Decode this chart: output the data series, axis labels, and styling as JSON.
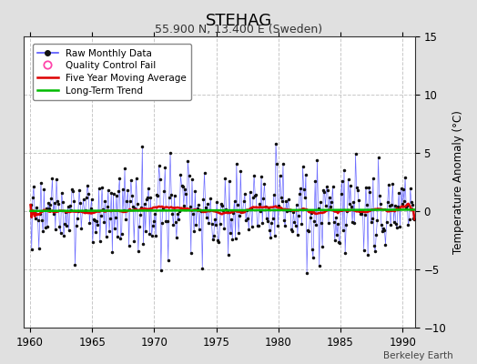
{
  "title": "STEHAG",
  "subtitle": "55.900 N, 13.400 E (Sweden)",
  "ylabel": "Temperature Anomaly (°C)",
  "xlabel": "",
  "xlim": [
    1959.5,
    1991.0
  ],
  "ylim": [
    -10,
    15
  ],
  "yticks": [
    -10,
    -5,
    0,
    5,
    10,
    15
  ],
  "xticks": [
    1960,
    1965,
    1970,
    1975,
    1980,
    1985,
    1990
  ],
  "background_color": "#e0e0e0",
  "plot_background_color": "#ffffff",
  "grid_color": "#c8c8c8",
  "raw_line_color": "#5555ff",
  "raw_marker_color": "#111111",
  "moving_avg_color": "#dd0000",
  "trend_color": "#00bb00",
  "qc_fail_color": "#ff44aa",
  "watermark": "Berkeley Earth",
  "legend_labels": [
    "Raw Monthly Data",
    "Quality Control Fail",
    "Five Year Moving Average",
    "Long-Term Trend"
  ],
  "seed": 17
}
